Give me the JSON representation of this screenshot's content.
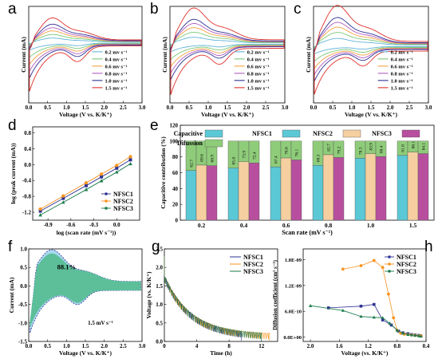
{
  "panels": {
    "a": {
      "label": "a",
      "ylabel": "Current (mA)",
      "xlabel": "Voltage (V vs. K/K⁺)"
    },
    "b": {
      "label": "b",
      "ylabel": "Current (mA)",
      "xlabel": "Voltage (V vs. K/K⁺)"
    },
    "c": {
      "label": "c",
      "ylabel": "Current (mA)",
      "xlabel": "Voltage (V vs. K/K⁺)"
    },
    "d": {
      "label": "d",
      "ylabel": "log (peak current (mA))",
      "xlabel": "log (scan rate (mV s⁻¹))"
    },
    "e": {
      "label": "e",
      "ylabel": "Capacitive contribution (%)",
      "xlabel": "Scan rate (mV s⁻¹)"
    },
    "f": {
      "label": "f",
      "ylabel": "Current (mA)",
      "xlabel": "Voltage (V vs. K/K⁺)",
      "annotation": "88.1%",
      "scan_note": "1.5 mV s⁻¹"
    },
    "g": {
      "label": "g",
      "ylabel": "Voltage (vs. K/K⁺)",
      "xlabel": "Time (h)"
    },
    "h": {
      "label": "h",
      "ylabel": "Diffusion coefficient (cm² s⁻¹)",
      "xlabel": "Voltage (vs. K/K⁺)"
    }
  },
  "colors": {
    "nfsc1": "#2e3192",
    "nfsc2": "#f7931e",
    "nfsc3": "#1a7a4a",
    "cap": "#5bc8d6",
    "cap2": "#f6cfa0",
    "cap3": "#b84f9e",
    "diff": "#8fcc7a",
    "fill_cap": "#5cbf9a",
    "fill_diff": "#a9d8f0"
  },
  "chart_data": [
    {
      "id": "a",
      "type": "line",
      "xlim": [
        0,
        3
      ],
      "ylim": [
        -1.5,
        0.9
      ],
      "xticks": [
        "0.0",
        "0.5",
        "1.0",
        "1.5",
        "2.0",
        "2.5",
        "3.0"
      ],
      "legend_placement": "bottom-right",
      "series": [
        {
          "name": "0.2 mv s⁻¹",
          "peak": 0.1,
          "trough": -0.22,
          "color": "#5fb3d9"
        },
        {
          "name": "0.4 mv s⁻¹",
          "peak": 0.18,
          "trough": -0.42,
          "color": "#7ac97a"
        },
        {
          "name": "0.6 mv s⁻¹",
          "peak": 0.26,
          "trough": -0.62,
          "color": "#f2a241"
        },
        {
          "name": "0.8 mv s⁻¹",
          "peak": 0.33,
          "trough": -0.82,
          "color": "#b05fbf"
        },
        {
          "name": "1.0 mv s⁻¹",
          "peak": 0.41,
          "trough": -1.02,
          "color": "#2e3192"
        },
        {
          "name": "1.5 mv s⁻¹",
          "peak": 0.55,
          "trough": -1.4,
          "color": "#e0312b"
        }
      ]
    },
    {
      "id": "b",
      "type": "line",
      "xlim": [
        0,
        3
      ],
      "ylim": [
        -1.6,
        1.0
      ],
      "xticks": [
        "0.0",
        "0.5",
        "1.0",
        "1.5",
        "2.0",
        "2.5",
        "3.0"
      ],
      "legend_placement": "bottom-right",
      "series": [
        {
          "name": "0.2 mv s⁻¹",
          "peak": 0.15,
          "trough": -0.25,
          "color": "#5fb3d9"
        },
        {
          "name": "0.4 mv s⁻¹",
          "peak": 0.27,
          "trough": -0.48,
          "color": "#7ac97a"
        },
        {
          "name": "0.6 mv s⁻¹",
          "peak": 0.38,
          "trough": -0.7,
          "color": "#f2a241"
        },
        {
          "name": "0.8 mv s⁻¹",
          "peak": 0.48,
          "trough": -0.9,
          "color": "#b05fbf"
        },
        {
          "name": "1.0 mv s⁻¹",
          "peak": 0.58,
          "trough": -1.1,
          "color": "#2e3192"
        },
        {
          "name": "1.5 mv s⁻¹",
          "peak": 0.85,
          "trough": -1.55,
          "color": "#e0312b"
        }
      ]
    },
    {
      "id": "c",
      "type": "line",
      "xlim": [
        0,
        3
      ],
      "ylim": [
        -1.6,
        1.1
      ],
      "xticks": [
        "0.0",
        "0.5",
        "1.0",
        "1.5",
        "2.0",
        "2.5",
        "3.0"
      ],
      "legend_placement": "bottom-right",
      "series": [
        {
          "name": "0.2 mv s⁻¹",
          "peak": 0.18,
          "trough": -0.25,
          "color": "#5fb3d9"
        },
        {
          "name": "0.4 mv s⁻¹",
          "peak": 0.33,
          "trough": -0.48,
          "color": "#7ac97a"
        },
        {
          "name": "0.6 mv s⁻¹",
          "peak": 0.46,
          "trough": -0.7,
          "color": "#f2a241"
        },
        {
          "name": "0.8 mv s⁻¹",
          "peak": 0.58,
          "trough": -0.9,
          "color": "#b05fbf"
        },
        {
          "name": "1.0 mv s⁻¹",
          "peak": 0.7,
          "trough": -1.1,
          "color": "#2e3192"
        },
        {
          "name": "1.5 mv s⁻¹",
          "peak": 1.0,
          "trough": -1.5,
          "color": "#e0312b"
        }
      ]
    },
    {
      "id": "d",
      "type": "line",
      "xlim": [
        -1.1,
        0.3
      ],
      "ylim": [
        -1.4,
        0.95
      ],
      "xticks": [
        -0.9,
        -0.6,
        -0.3,
        0.0
      ],
      "yticks": [
        -1.2,
        -0.8,
        -0.4,
        0.0,
        0.4,
        0.8
      ],
      "tick_labels_x": [
        "-0.9",
        "-0.6",
        "-0.3",
        "0.0"
      ],
      "tick_labels_y": [
        "-1.2",
        "-0.8",
        "-0.4",
        "0.0",
        "0.4",
        "0.8"
      ],
      "x": [
        -1.0,
        -0.7,
        -0.4,
        -0.2,
        0.0,
        0.18
      ],
      "legend_placement": "bottom-right",
      "series": [
        {
          "name": "NFSC1",
          "values": [
            -1.17,
            -0.85,
            -0.53,
            -0.31,
            -0.09,
            0.12
          ],
          "marker": "square"
        },
        {
          "name": "NFSC2",
          "values": [
            -1.12,
            -0.79,
            -0.46,
            -0.24,
            -0.02,
            0.2
          ],
          "marker": "circle"
        },
        {
          "name": "NFSC3",
          "values": [
            -1.27,
            -0.95,
            -0.63,
            -0.41,
            -0.19,
            0.02
          ],
          "marker": "triangle"
        }
      ]
    },
    {
      "id": "e",
      "type": "bar",
      "ylim": [
        0,
        120
      ],
      "yticks": [
        "0",
        "20",
        "40",
        "60",
        "80",
        "100",
        "120"
      ],
      "categories": [
        "0.2",
        "0.4",
        "0.6",
        "0.8",
        "1.0",
        "1.5"
      ],
      "legend": [
        "Capacitive",
        "Difussion",
        "NFSC1",
        "NFSC2",
        "NFSC3"
      ],
      "legend_placement": "top",
      "series": [
        {
          "name": "NFSC1",
          "values": [
            62.7,
            65.8,
            67.4,
            69.3,
            78.3,
            81.8
          ]
        },
        {
          "name": "NFSC2",
          "values": [
            69.6,
            73.9,
            78.6,
            82.7,
            83.9,
            86.1
          ]
        },
        {
          "name": "NFSC3",
          "values": [
            68.9,
            72.4,
            76.1,
            79.2,
            80.4,
            84.1
          ]
        }
      ],
      "labels": [
        [
          "62.7",
          "69.6",
          "68.9"
        ],
        [
          "65.8",
          "73.9",
          "72.4"
        ],
        [
          "67.4",
          "78.6",
          "76.1"
        ],
        [
          "69.3",
          "82.7",
          "79.2"
        ],
        [
          "78.3",
          "83.9",
          "80.4"
        ],
        [
          "81.8",
          "86.1",
          "84.1"
        ]
      ]
    },
    {
      "id": "f",
      "type": "area",
      "xlim": [
        0,
        3
      ],
      "ylim": [
        -1.5,
        1.0
      ],
      "xticks": [
        "0.0",
        "0.5",
        "1.0",
        "1.5",
        "2.0",
        "2.5",
        "3.0"
      ],
      "yticks": [
        "-1.5",
        "-1.0",
        "-0.5",
        "0.0",
        "0.5",
        "1.0"
      ],
      "capacitive_percent": 88.1
    },
    {
      "id": "g",
      "type": "line",
      "xlim": [
        0,
        14
      ],
      "ylim": [
        0,
        2.5
      ],
      "xticks": [
        "0",
        "4",
        "8",
        "12"
      ],
      "yticks": [
        "0.0",
        "0.5",
        "1.0",
        "1.5",
        "2.0",
        "2.5"
      ],
      "legend_placement": "top-right",
      "series": [
        {
          "name": "NFSC1",
          "end_time": 9.5
        },
        {
          "name": "NFSC2",
          "end_time": 13.0
        },
        {
          "name": "NFSC3",
          "end_time": 12.0
        }
      ]
    },
    {
      "id": "h",
      "type": "scatter",
      "xlim": [
        2.1,
        0.4
      ],
      "ylim": [
        -1e-10,
        2.05e-09
      ],
      "xticks": [
        "2.0",
        "1.6",
        "1.2",
        "0.8",
        "0.4"
      ],
      "yticks": [
        "0.0E+00",
        "6.0E-10",
        "1.2E-09",
        "1.8E-09"
      ],
      "legend_placement": "top-right",
      "series": [
        {
          "name": "NFSC1",
          "x": [
            1.75,
            1.3,
            1.12,
            1.0,
            0.88,
            0.78,
            0.72,
            0.65,
            0.6,
            0.55,
            0.5,
            0.47
          ],
          "values": [
            6.8e-10,
            7.2e-10,
            7.6e-10,
            4e-10,
            2.8e-10,
            1.4e-10,
            1e-10,
            8e-11,
            6e-11,
            5e-11,
            4e-11,
            3e-11
          ]
        },
        {
          "name": "NFSC2",
          "x": [
            1.55,
            1.3,
            1.12,
            1.0,
            0.92,
            0.85,
            0.8,
            0.75,
            0.7,
            0.65,
            0.6,
            0.55,
            0.5,
            0.47
          ],
          "values": [
            1.58e-09,
            1.66e-09,
            1.78e-09,
            1.62e-09,
            1e-09,
            4.5e-10,
            1.6e-10,
            9e-11,
            7e-11,
            6e-11,
            5e-11,
            4e-11,
            3e-11,
            3e-11
          ]
        },
        {
          "name": "NFSC3",
          "x": [
            2.0,
            1.55,
            1.3,
            1.12,
            1.0,
            0.9,
            0.8,
            0.72,
            0.65,
            0.6,
            0.55,
            0.5,
            0.47
          ],
          "values": [
            7.3e-10,
            6.2e-10,
            4.8e-10,
            4.6e-10,
            4.5e-10,
            3.2e-10,
            1.6e-10,
            9e-11,
            6e-11,
            5e-11,
            4e-11,
            3e-11,
            2e-11
          ]
        }
      ]
    }
  ]
}
